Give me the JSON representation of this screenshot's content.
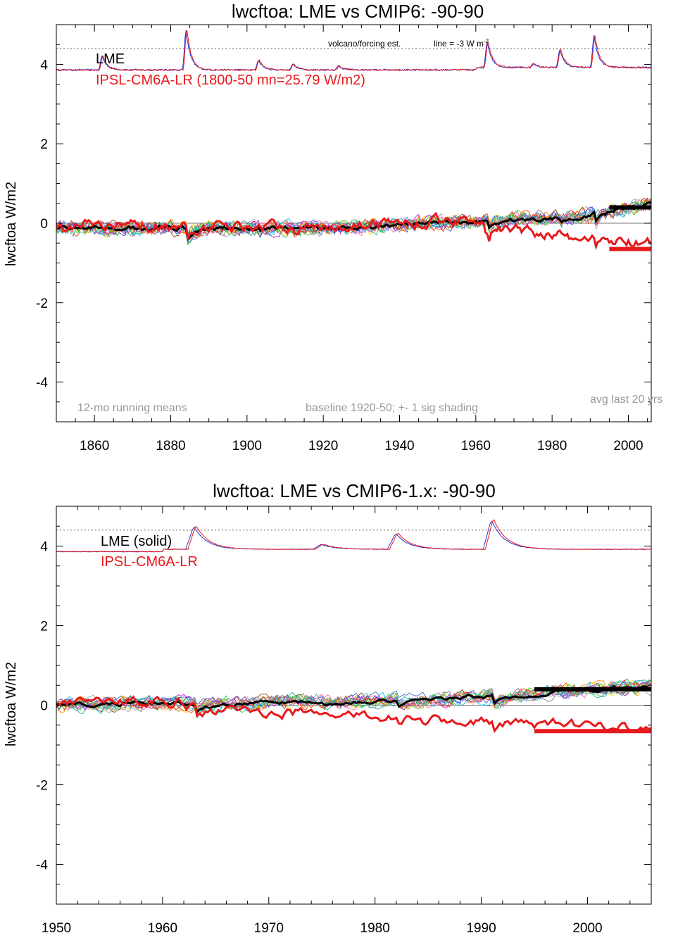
{
  "chart_data": [
    {
      "type": "line",
      "title": "lwcftoa: LME vs CMIP6: -90-90",
      "ylabel": "lwcftoa W/m2",
      "xlim": [
        1850,
        2006
      ],
      "ylim": [
        -5,
        5
      ],
      "x_ticks": [
        "1860",
        "1880",
        "1900",
        "1920",
        "1940",
        "1960",
        "1980",
        "2000"
      ],
      "y_ticks": [
        "-4",
        "-2",
        "0",
        "2",
        "4"
      ],
      "legend": [
        "LME",
        "IPSL-CM6A-LR (1800-50 mn=25.79 W/m2)"
      ],
      "notes": {
        "left": "12-mo running means",
        "center": "baseline 1920-50; +- 1 sig shading",
        "right": "avg last 20 yrs",
        "volcano_label": "volcano/forcing est.",
        "volcano_line": "line = -3 W m"
      },
      "reference_line_y": 4.4,
      "volcano_peaks": [
        [
          1862,
          0.35
        ],
        [
          1884,
          1.0
        ],
        [
          1903,
          0.25
        ],
        [
          1912,
          0.15
        ],
        [
          1924,
          0.1
        ],
        [
          1963,
          0.65
        ],
        [
          1975,
          0.1
        ],
        [
          1982,
          0.45
        ],
        [
          1991,
          0.8
        ]
      ],
      "avg_last20": {
        "LME": 0.4,
        "IPSL-CM6A-LR": -0.65,
        "x_range": [
          1995,
          2006
        ]
      },
      "colors": {
        "lme": "#000000",
        "model": "#e8191c",
        "forcing_blue": "#1f30d9",
        "forcing_red": "#e8191c",
        "note": "#999999"
      }
    },
    {
      "type": "line",
      "title": "lwcftoa: LME vs CMIP6-1.x: -90-90",
      "ylabel": "lwcftoa W/m2",
      "xlim": [
        1950,
        2006
      ],
      "ylim": [
        -5,
        5
      ],
      "x_ticks": [
        "1950",
        "1960",
        "1970",
        "1980",
        "1990",
        "2000"
      ],
      "y_ticks": [
        "-4",
        "-2",
        "0",
        "2",
        "4"
      ],
      "legend": [
        "LME (solid)",
        "IPSL-CM6A-LR"
      ],
      "reference_line_y": 4.4,
      "volcano_peaks": [
        [
          1963,
          0.55
        ],
        [
          1975,
          0.12
        ],
        [
          1982,
          0.38
        ],
        [
          1991,
          0.7
        ]
      ],
      "avg_last20": {
        "LME": 0.4,
        "IPSL-CM6A-LR": -0.65,
        "x_range": [
          1995,
          2006
        ]
      },
      "colors": {
        "lme": "#000000",
        "model": "#e8191c",
        "forcing_blue": "#1f30d9",
        "forcing_red": "#e8191c"
      }
    }
  ]
}
